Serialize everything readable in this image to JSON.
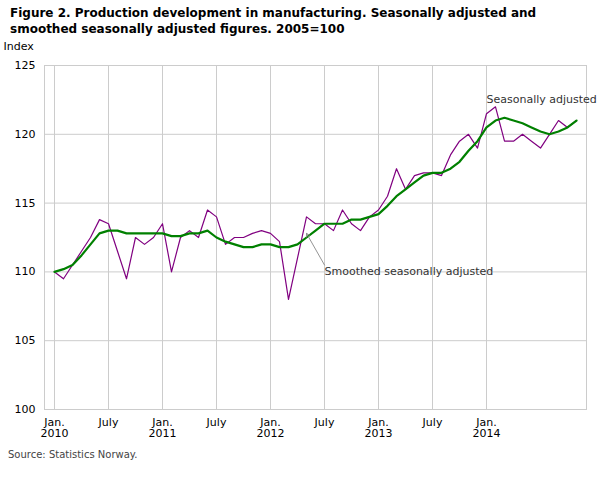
{
  "chart_data": {
    "type": "line",
    "title": "Figure 2. Production development in manufacturing. Seasonally adjusted and\nsmoothed seasonally adjusted figures. 2005=100",
    "ylabel": "Index",
    "source": "Source: Statistics Norway.",
    "categories": [
      "Jan.\n2010",
      null,
      null,
      null,
      null,
      null,
      "July",
      null,
      null,
      null,
      null,
      null,
      "Jan.\n2011",
      null,
      null,
      null,
      null,
      null,
      "July",
      null,
      null,
      null,
      null,
      null,
      "Jan.\n2012",
      null,
      null,
      null,
      null,
      null,
      "July",
      null,
      null,
      null,
      null,
      null,
      "Jan.\n2013",
      null,
      null,
      null,
      null,
      null,
      "July",
      null,
      null,
      null,
      null,
      null,
      "Jan.\n2014",
      null,
      null,
      null,
      null,
      null,
      null,
      null,
      null,
      null,
      null
    ],
    "series": [
      {
        "name": "Seasonally adjusted",
        "color": "#800080",
        "values": [
          110.0,
          109.5,
          110.5,
          111.5,
          112.5,
          113.8,
          113.5,
          111.5,
          109.5,
          112.5,
          112.0,
          112.5,
          113.5,
          110.0,
          112.5,
          113.0,
          112.5,
          114.5,
          114.0,
          112.0,
          112.5,
          112.5,
          112.8,
          113.0,
          112.8,
          112.2,
          108.0,
          111.0,
          114.0,
          113.5,
          113.5,
          113.0,
          114.5,
          113.5,
          113.0,
          114.0,
          114.5,
          115.5,
          117.5,
          116.0,
          117.0,
          117.2,
          117.2,
          117.0,
          118.5,
          119.5,
          120.0,
          119.0,
          121.5,
          122.0,
          119.5,
          119.5,
          120.0,
          119.5,
          119.0,
          120.0,
          121.0,
          120.5,
          121.0
        ]
      },
      {
        "name": "Smoothed seasonally adjusted",
        "color": "#008000",
        "values": [
          110.0,
          110.2,
          110.5,
          111.2,
          112.0,
          112.8,
          113.0,
          113.0,
          112.8,
          112.8,
          112.8,
          112.8,
          112.8,
          112.6,
          112.6,
          112.8,
          112.8,
          113.0,
          112.5,
          112.2,
          112.0,
          111.8,
          111.8,
          112.0,
          112.0,
          111.8,
          111.8,
          112.0,
          112.5,
          113.0,
          113.5,
          113.5,
          113.5,
          113.8,
          113.8,
          114.0,
          114.2,
          114.8,
          115.5,
          116.0,
          116.5,
          117.0,
          117.2,
          117.2,
          117.5,
          118.0,
          118.8,
          119.5,
          120.5,
          121.0,
          121.2,
          121.0,
          120.8,
          120.5,
          120.2,
          120.0,
          120.2,
          120.5,
          121.0
        ]
      }
    ],
    "ylim": [
      100,
      125
    ],
    "yticks": [
      100,
      105,
      110,
      115,
      120,
      125
    ],
    "grid": true
  }
}
